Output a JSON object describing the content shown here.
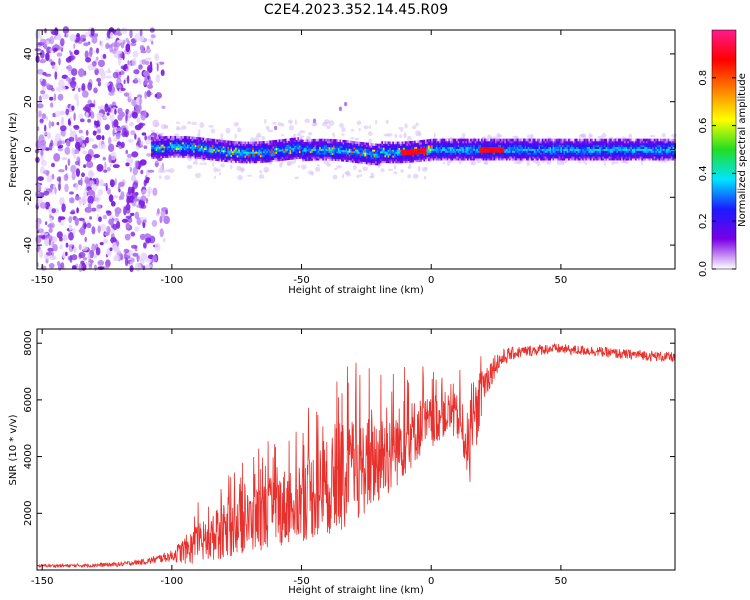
{
  "figure_title": "C2E4.2023.352.14.45.R09",
  "colors": {
    "snr_line": "#e8302c",
    "noise_purple": "#8a2be2",
    "colormap": [
      "#ffffff",
      "#7a00e6",
      "#1a1aff",
      "#00e5ff",
      "#22dd22",
      "#ffff00",
      "#ff7f00",
      "#ff0000",
      "#ff1a8c"
    ]
  },
  "chart_data": [
    {
      "type": "heatmap",
      "xlabel": "Height of straight line (km)",
      "ylabel": "Frequency (Hz)",
      "xlim": [
        -152,
        94
      ],
      "ylim": [
        -50,
        50
      ],
      "x_ticks": [
        -150,
        -100,
        -50,
        0,
        50
      ],
      "y_ticks": [
        -40,
        -20,
        0,
        20,
        40
      ],
      "colorbar": {
        "label": "Normalized spectral amplitude",
        "range": [
          0,
          1
        ],
        "ticks": [
          0.0,
          0.2,
          0.4,
          0.6,
          0.8
        ],
        "colormap": "rainbow"
      },
      "features": [
        {
          "region": "broadband noise",
          "x_range": [
            -152,
            -108
          ],
          "y_range": [
            -50,
            50
          ],
          "amplitude": 0.05
        },
        {
          "region": "narrowband line",
          "x_range": [
            -108,
            94
          ],
          "center_hz": 0,
          "halfwidth_hz": 4,
          "amplitude": 0.35
        },
        {
          "region": "peak segment",
          "x_range": [
            -12,
            -2
          ],
          "center_hz": 0.5,
          "amplitude": 0.85
        },
        {
          "region": "peak segment",
          "x_range": [
            18,
            28
          ],
          "center_hz": 0.3,
          "amplitude": 0.85
        }
      ]
    },
    {
      "type": "line",
      "xlabel": "Height of straight line (km)",
      "ylabel": "SNR (10 * v/v)",
      "xlim": [
        -152,
        94
      ],
      "ylim": [
        0,
        8500
      ],
      "x_ticks": [
        -150,
        -100,
        -50,
        0,
        50
      ],
      "y_ticks": [
        2000,
        4000,
        6000,
        8000
      ],
      "series": [
        {
          "x": [
            -152,
            -140,
            -130,
            -120,
            -110,
            -100,
            -95,
            -90,
            -85,
            -80,
            -75,
            -70,
            -65,
            -60,
            -55,
            -50,
            -45,
            -40,
            -35,
            -30,
            -25,
            -20,
            -15,
            -10,
            -5,
            0,
            5,
            10,
            15,
            20,
            25,
            30,
            35,
            40,
            45,
            50,
            55,
            60,
            65,
            70,
            75,
            80,
            85,
            94
          ],
          "y": [
            150,
            150,
            170,
            200,
            300,
            500,
            700,
            900,
            1100,
            1300,
            1500,
            1700,
            1900,
            2100,
            2300,
            2500,
            2700,
            2900,
            3100,
            3400,
            3700,
            3900,
            4200,
            4600,
            5000,
            5200,
            5500,
            5400,
            4200,
            6500,
            7300,
            7600,
            7700,
            7750,
            7800,
            7800,
            7750,
            7750,
            7700,
            7650,
            7600,
            7600,
            7550,
            7500
          ],
          "spread": [
            50,
            60,
            70,
            80,
            100,
            200,
            500,
            700,
            800,
            900,
            1000,
            1100,
            1200,
            1300,
            1400,
            1500,
            1600,
            1700,
            1800,
            1800,
            1700,
            1600,
            1500,
            1300,
            1100,
            900,
            800,
            800,
            1200,
            700,
            400,
            250,
            200,
            200,
            180,
            180,
            180,
            180,
            180,
            180,
            180,
            180,
            180,
            180
          ]
        }
      ]
    }
  ]
}
